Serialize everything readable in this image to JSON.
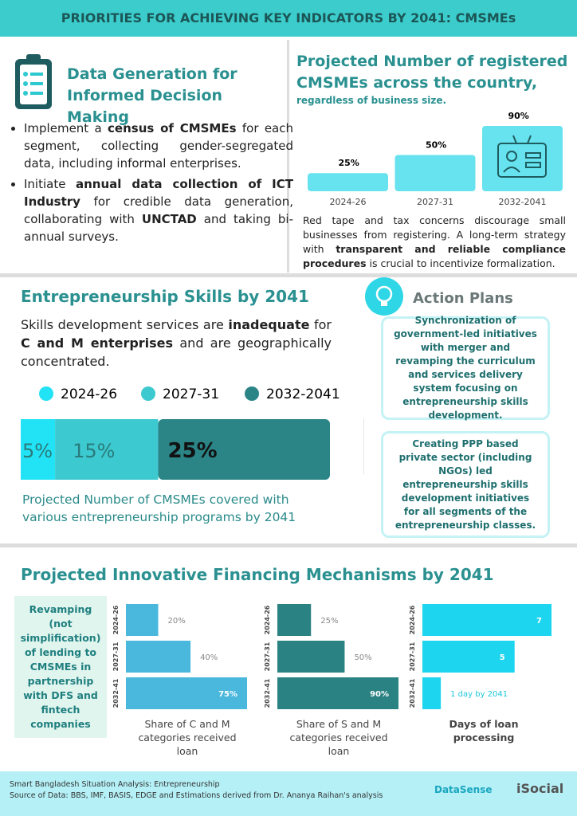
{
  "header": {
    "title": "PRIORITIES FOR ACHIEVING KEY INDICATORS BY 2041: CMSMEs"
  },
  "data_generation": {
    "title": "Data Generation for Informed Decision Making",
    "bullets": [
      {
        "runs": [
          {
            "text": "Implement a ",
            "bold": false
          },
          {
            "text": "census of CMSMEs",
            "bold": true
          },
          {
            "text": " for each segment, collecting gender-segregated data, including informal enterprises.",
            "bold": false
          }
        ]
      },
      {
        "runs": [
          {
            "text": "Initiate ",
            "bold": false
          },
          {
            "text": "annual data collection of ICT Industry",
            "bold": true
          },
          {
            "text": " for credible data generation, collaborating with ",
            "bold": false
          },
          {
            "text": "UNCTAD",
            "bold": true
          },
          {
            "text": " and taking bi-annual surveys.",
            "bold": false
          }
        ]
      }
    ]
  },
  "registered_note": {
    "runs": [
      {
        "text": "Red tape and tax concerns discourage small businesses from registering. A long-term strategy with ",
        "bold": false
      },
      {
        "text": "transparent and reliable compliance procedures",
        "bold": true
      },
      {
        "text": " is crucial to incentivize formalization.",
        "bold": false
      }
    ]
  },
  "skills": {
    "title": "Entrepreneurship Skills by 2041",
    "runs": [
      {
        "text": "Skills development services are ",
        "bold": false
      },
      {
        "text": "inadequate",
        "bold": true
      },
      {
        "text": " for ",
        "bold": false
      },
      {
        "text": "C and M enterprises",
        "bold": true
      },
      {
        "text": " and are geographically concentrated.",
        "bold": false
      }
    ]
  },
  "action_plans": {
    "title": "Action Plans",
    "items": [
      "Synchronization of government-led initiatives with merger and revamping the curriculum and services delivery system focusing on entrepreneurship skills development.",
      "Creating PPP based private sector (including NGOs) led entrepreneurship skills development initiatives for all segments of the entrepreneurship classes."
    ]
  },
  "financing": {
    "title": "Projected Innovative Financing Mechanisms by 2041",
    "box": "Revamping (not simplification) of lending to CMSMEs in partnership with DFS and fintech companies"
  },
  "chart_data": [
    {
      "type": "bar",
      "title": "Projected Number of registered CMSMEs across the country,",
      "subtitle": "regardless of business size.",
      "categories": [
        "2024-26",
        "2027-31",
        "2032-2041"
      ],
      "values": [
        25,
        50,
        90
      ],
      "value_labels": [
        "25%",
        "50%",
        "90%"
      ],
      "color": "#66e3ee"
    },
    {
      "type": "stacked_bar",
      "caption": "Projected Number of CMSMEs covered with various entrepreneurship programs by 2041",
      "series": [
        {
          "name": "2024-26",
          "color": "#22e3f5",
          "values": [
            5
          ],
          "value_labels": [
            "5%"
          ]
        },
        {
          "name": "2027-31",
          "color": "#3cc9cf",
          "values": [
            15
          ],
          "value_labels": [
            "15%"
          ]
        },
        {
          "name": "2032-2041",
          "color": "#2b8587",
          "values": [
            25
          ],
          "value_labels": [
            "25%"
          ]
        }
      ]
    },
    {
      "type": "hbar",
      "caption": "Share of C and M categories received loan",
      "categories": [
        "2024-26",
        "2027-31",
        "2032-41"
      ],
      "values": [
        20,
        40,
        75
      ],
      "value_labels": [
        "20%",
        "40%",
        "75%"
      ],
      "color": "#4ab8dc"
    },
    {
      "type": "hbar",
      "caption": "Share of S and M categories received loan",
      "categories": [
        "2024-26",
        "2027-31",
        "2032-41"
      ],
      "values": [
        25,
        50,
        90
      ],
      "value_labels": [
        "25%",
        "50%",
        "90%"
      ],
      "color": "#2b8283"
    },
    {
      "type": "hbar",
      "caption": "Days of loan processing",
      "categories": [
        "2024-26",
        "2027-31",
        "2032-41"
      ],
      "values": [
        7,
        5,
        1
      ],
      "value_labels": [
        "7",
        "5",
        "1 day by 2041"
      ],
      "color": "#1dd5ef"
    }
  ],
  "footer": {
    "lines": [
      "Smart Bangladesh Situation Analysis: Entrepreneurship",
      "Source of Data: BBS, IMF, BASIS, EDGE and Estimations derived from Dr. Ananya Raihan's analysis"
    ],
    "logos": [
      "DataSense",
      "iSocial"
    ]
  }
}
